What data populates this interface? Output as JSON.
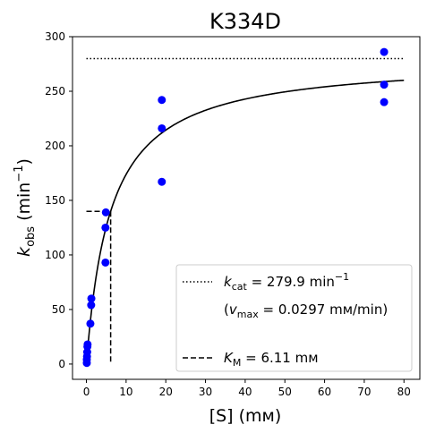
{
  "chart_data": {
    "type": "scatter",
    "title": "K334D",
    "xlabel": "[S] (mм)",
    "ylabel_base": "k",
    "ylabel_sub": "obs",
    "ylabel_unit_open": " (min",
    "ylabel_unit_sup": "−1",
    "ylabel_unit_close": ")",
    "xlim": [
      -3.5,
      84
    ],
    "ylim": [
      -14,
      300
    ],
    "xticks": [
      0,
      10,
      20,
      30,
      40,
      50,
      60,
      70,
      80
    ],
    "yticks": [
      0,
      50,
      100,
      150,
      200,
      250,
      300
    ],
    "point_color": "#0000ff",
    "points": [
      {
        "x": 0.1,
        "y": 1
      },
      {
        "x": 0.1,
        "y": 4
      },
      {
        "x": 0.15,
        "y": 7
      },
      {
        "x": 0.2,
        "y": 11
      },
      {
        "x": 0.25,
        "y": 16
      },
      {
        "x": 0.3,
        "y": 18
      },
      {
        "x": 1.0,
        "y": 37
      },
      {
        "x": 1.2,
        "y": 54
      },
      {
        "x": 1.25,
        "y": 60
      },
      {
        "x": 4.8,
        "y": 93
      },
      {
        "x": 4.8,
        "y": 125
      },
      {
        "x": 4.9,
        "y": 139
      },
      {
        "x": 19.0,
        "y": 167
      },
      {
        "x": 19.0,
        "y": 216
      },
      {
        "x": 19.0,
        "y": 242
      },
      {
        "x": 75.0,
        "y": 240
      },
      {
        "x": 75.0,
        "y": 256
      },
      {
        "x": 75.0,
        "y": 286
      }
    ],
    "fit": {
      "kcat": 279.9,
      "KM": 6.11,
      "x_range": [
        0,
        80
      ],
      "style": "solid"
    },
    "kcat_line": {
      "y": 279.9,
      "x_range": [
        0,
        80
      ],
      "style": "dotted"
    },
    "km_lines": {
      "x": 6.11,
      "y": 139.95,
      "x_start": 0,
      "style": "dashed"
    },
    "legend": {
      "placement": "lower-right",
      "kcat_sym": "k",
      "kcat_sub": "cat",
      "kcat_text": " = 279.9 min",
      "kcat_sup": "−1",
      "vmax_open": "(",
      "vmax_sym": "v",
      "vmax_sub": "max",
      "vmax_text": " = 0.0297 mм/min)",
      "km_sym": "K",
      "km_sub": "M",
      "km_text": " = 6.11 mм"
    }
  }
}
